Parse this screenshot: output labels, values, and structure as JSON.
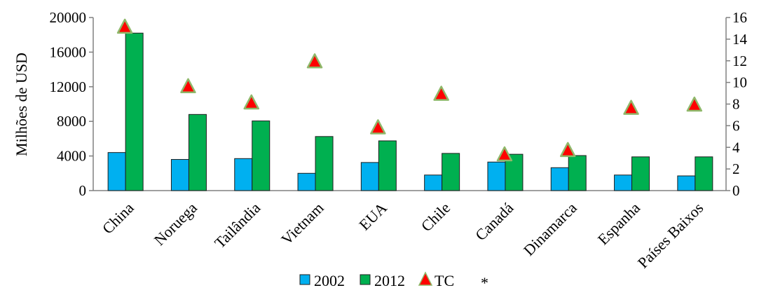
{
  "chart_data": {
    "type": "bar",
    "categories": [
      "China",
      "Noruega",
      "Tailândia",
      "Vietnam",
      "EUA",
      "Chile",
      "Canadá",
      "Dinamarca",
      "Espanha",
      "Países Baixos"
    ],
    "series": [
      {
        "name": "2002",
        "axis": "left",
        "kind": "bar",
        "color": "#00b0f0",
        "values": [
          4400,
          3600,
          3700,
          2000,
          3250,
          1800,
          3300,
          2650,
          1800,
          1700
        ]
      },
      {
        "name": "2012",
        "axis": "left",
        "kind": "bar",
        "color": "#00b050",
        "values": [
          18200,
          8800,
          8050,
          6250,
          5750,
          4300,
          4200,
          4050,
          3900,
          3900
        ]
      },
      {
        "name": "TC",
        "axis": "right",
        "kind": "marker",
        "color": "#ff0000",
        "values": [
          15.1,
          9.6,
          8.1,
          11.9,
          5.8,
          8.9,
          3.3,
          3.7,
          7.6,
          7.9
        ]
      }
    ],
    "ylabel": "Milhões de USD",
    "ylim": [
      0,
      20000
    ],
    "yticks": [
      0,
      4000,
      8000,
      12000,
      16000,
      20000
    ],
    "y2lim": [
      0,
      16
    ],
    "y2ticks": [
      0,
      2,
      4,
      6,
      8,
      10,
      12,
      14,
      16
    ],
    "grid": false,
    "legend": {
      "position": "bottom",
      "suffix": "*"
    }
  }
}
